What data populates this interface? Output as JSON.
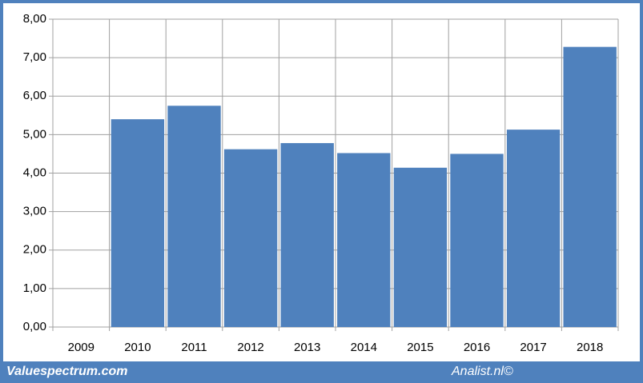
{
  "chart_data": {
    "type": "bar",
    "categories": [
      "2009",
      "2010",
      "2011",
      "2012",
      "2013",
      "2014",
      "2015",
      "2016",
      "2017",
      "2018"
    ],
    "values": [
      null,
      5.4,
      5.75,
      4.62,
      4.78,
      4.52,
      4.14,
      4.5,
      5.13,
      7.28
    ],
    "color": "#4f81bd",
    "ylim": [
      0,
      8
    ],
    "yticks": [
      {
        "value": 0,
        "label": "0,00"
      },
      {
        "value": 1,
        "label": "1,00"
      },
      {
        "value": 2,
        "label": "2,00"
      },
      {
        "value": 3,
        "label": "3,00"
      },
      {
        "value": 4,
        "label": "4,00"
      },
      {
        "value": 5,
        "label": "5,00"
      },
      {
        "value": 6,
        "label": "6,00"
      },
      {
        "value": 7,
        "label": "7,00"
      },
      {
        "value": 8,
        "label": "8,00"
      }
    ],
    "grid": true,
    "footer_left": "Valuespectrum.com",
    "footer_right": "Analist.nl©"
  }
}
